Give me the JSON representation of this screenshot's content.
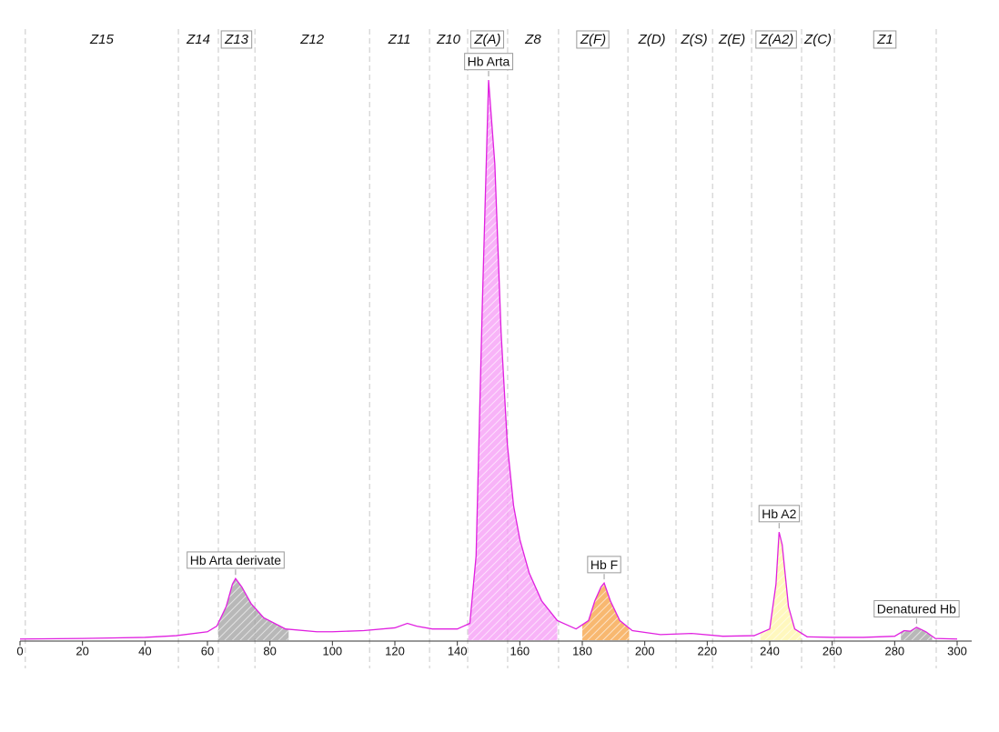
{
  "chart_data": {
    "type": "line",
    "xlim": [
      0,
      300
    ],
    "ylim": [
      0,
      100
    ],
    "xticks": [
      0,
      20,
      40,
      60,
      80,
      100,
      120,
      140,
      160,
      180,
      200,
      220,
      240,
      260,
      280,
      300
    ],
    "zone_bounds": [
      1.7,
      50.7,
      63.5,
      75.2,
      111.9,
      131.1,
      143.3,
      156.1,
      172.4,
      194.6,
      210.0,
      221.7,
      234.2,
      250.2,
      260.7,
      293.3
    ],
    "zones": [
      {
        "label": "Z15",
        "boxed": false
      },
      {
        "label": "Z14",
        "boxed": false
      },
      {
        "label": "Z13",
        "boxed": true
      },
      {
        "label": "Z12",
        "boxed": false
      },
      {
        "label": "Z11",
        "boxed": false
      },
      {
        "label": "Z10",
        "boxed": false
      },
      {
        "label": "Z(A)",
        "boxed": true
      },
      {
        "label": "Z8",
        "boxed": false
      },
      {
        "label": "Z(F)",
        "boxed": true
      },
      {
        "label": "Z(D)",
        "boxed": false
      },
      {
        "label": "Z(S)",
        "boxed": false
      },
      {
        "label": "Z(E)",
        "boxed": false
      },
      {
        "label": "Z(A2)",
        "boxed": true
      },
      {
        "label": "Z(C)",
        "boxed": false
      },
      {
        "label": "Z1",
        "boxed": true
      }
    ],
    "series": [
      {
        "color": "#e020e0",
        "x": [
          0,
          20,
          40,
          50,
          60,
          63,
          66,
          68,
          69,
          71,
          74,
          78,
          85,
          95,
          100,
          110,
          120,
          124,
          127,
          132,
          140,
          144,
          146,
          148,
          150,
          152,
          154,
          156,
          158,
          160,
          163,
          167,
          172,
          178,
          182,
          184,
          186,
          187,
          189,
          192,
          196,
          205,
          215,
          225,
          235,
          240,
          242,
          243,
          244,
          246,
          248,
          252,
          260,
          270,
          280,
          283,
          285,
          287,
          290,
          293,
          300
        ],
        "values": [
          0.2,
          0.3,
          0.5,
          0.8,
          1.5,
          2.5,
          6,
          10,
          11,
          9.5,
          6.5,
          4,
          2,
          1.5,
          1.5,
          1.7,
          2.2,
          3,
          2.5,
          2,
          2,
          3,
          15,
          60,
          100,
          85,
          55,
          35,
          24,
          18,
          12,
          7,
          3.5,
          2,
          3.5,
          7,
          9.5,
          10.2,
          7,
          3.5,
          1.7,
          1,
          1.2,
          0.7,
          0.8,
          2,
          10,
          19.3,
          17,
          6,
          2,
          0.6,
          0.5,
          0.5,
          0.7,
          1.7,
          1.6,
          2.3,
          1.5,
          0.3,
          0.2
        ]
      }
    ],
    "fractions": [
      {
        "label": "Hb Arta derivate",
        "x_start": 63.5,
        "x_end": 86,
        "color": "#a0a0a0"
      },
      {
        "label": "Hb Arta",
        "x_start": 143.5,
        "x_end": 172,
        "color": "#f59af5"
      },
      {
        "label": "Hb F",
        "x_start": 180,
        "x_end": 195,
        "color": "#f5a040"
      },
      {
        "label": "Hb A2",
        "x_start": 237,
        "x_end": 250,
        "color": "#fff6a8"
      },
      {
        "label": "Denatured Hb",
        "x_start": 282,
        "x_end": 292,
        "color": "#a0a0a0"
      }
    ]
  }
}
